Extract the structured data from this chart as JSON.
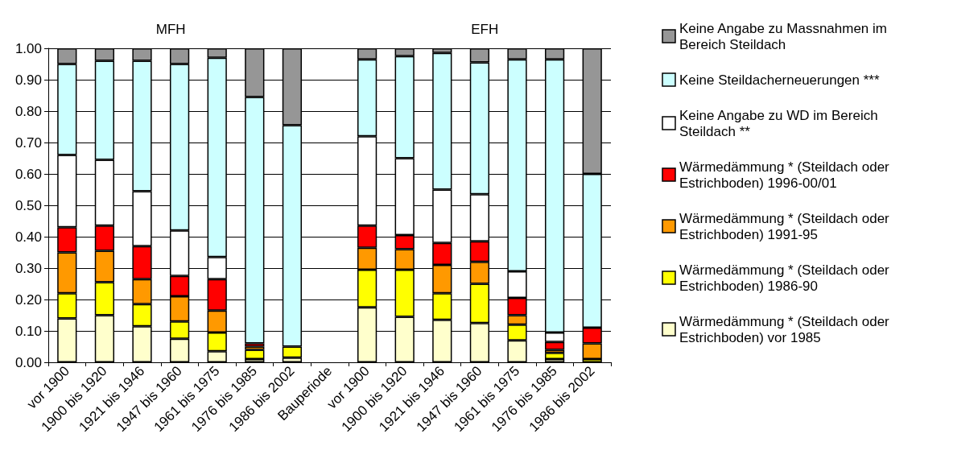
{
  "chart_data": {
    "type": "bar",
    "stacked": true,
    "categories": [
      "vor 1900",
      "1900 bis 1920",
      "1921 bis 1946",
      "1947 bis 1960",
      "1961 bis 1975",
      "1976 bis 1985",
      "1986 bis 2002",
      "Bauperiode",
      "vor 1900",
      "1900 bis 1920",
      "1921 bis 1946",
      "1947 bis 1960",
      "1961 bis 1975",
      "1976 bis 1985",
      "1986 bis 2002"
    ],
    "annotations": [
      "MFH",
      "EFH"
    ],
    "ylim": [
      0,
      1
    ],
    "yticks": [
      {
        "value": 0,
        "label": "0.00"
      },
      {
        "value": 0.1,
        "label": "0.10"
      },
      {
        "value": 0.2,
        "label": "0.20"
      },
      {
        "value": 0.3,
        "label": "0.30"
      },
      {
        "value": 0.4,
        "label": "0.40"
      },
      {
        "value": 0.5,
        "label": "0.50"
      },
      {
        "value": 0.6,
        "label": "0.60"
      },
      {
        "value": 0.7,
        "label": "0.70"
      },
      {
        "value": 0.8,
        "label": "0.80"
      },
      {
        "value": 0.9,
        "label": "0.90"
      },
      {
        "value": 1,
        "label": "1.00"
      }
    ],
    "grid": "y",
    "legend": "right",
    "series": [
      {
        "name": "Wärmedämmung * (Steildach oder Estrichboden) vor 1985",
        "color": "#ffffcc",
        "values": [
          0.14,
          0.15,
          0.115,
          0.075,
          0.035,
          0.01,
          0.015,
          null,
          0.175,
          0.145,
          0.135,
          0.125,
          0.07,
          0.01,
          null
        ]
      },
      {
        "name": "Wärmedämmung * (Steildach oder Estrichboden) 1986-90",
        "color": "#ffff00",
        "values": [
          0.08,
          0.105,
          0.07,
          0.055,
          0.06,
          0.03,
          0.035,
          null,
          0.12,
          0.15,
          0.085,
          0.125,
          0.05,
          0.02,
          0.01
        ]
      },
      {
        "name": "Wärmedämmung * (Steildach oder Estrichboden) 1991-95",
        "color": "#ff9900",
        "values": [
          0.13,
          0.1,
          0.08,
          0.08,
          0.07,
          0.01,
          null,
          null,
          0.07,
          0.065,
          0.09,
          0.07,
          0.03,
          0.01,
          0.05
        ]
      },
      {
        "name": "Wärmedämmung * (Steildach oder Estrichboden) 1996-00/01",
        "color": "#ff0000",
        "values": [
          0.08,
          0.08,
          0.105,
          0.065,
          0.1,
          0.01,
          null,
          null,
          0.07,
          0.045,
          0.07,
          0.065,
          0.055,
          0.025,
          0.05
        ]
      },
      {
        "name": "Keine Angabe zu WD im Bereich Steildach **",
        "color": "#ffffff",
        "values": [
          0.23,
          0.21,
          0.175,
          0.145,
          0.07,
          null,
          null,
          null,
          0.285,
          0.245,
          0.17,
          0.15,
          0.085,
          0.03,
          null
        ]
      },
      {
        "name": "Keine Steildacherneuerungen ***",
        "color": "#ccffff",
        "values": [
          0.29,
          0.315,
          0.415,
          0.53,
          0.635,
          0.785,
          0.705,
          null,
          0.245,
          0.325,
          0.435,
          0.42,
          0.675,
          0.87,
          0.49
        ]
      },
      {
        "name": "Keine Angabe zu Massnahmen im Bereich Steildach",
        "color": "#969696",
        "values": [
          0.05,
          0.04,
          0.04,
          0.05,
          0.03,
          0.155,
          0.245,
          null,
          0.035,
          0.025,
          0.015,
          0.045,
          0.035,
          0.035,
          0.4
        ]
      }
    ]
  }
}
